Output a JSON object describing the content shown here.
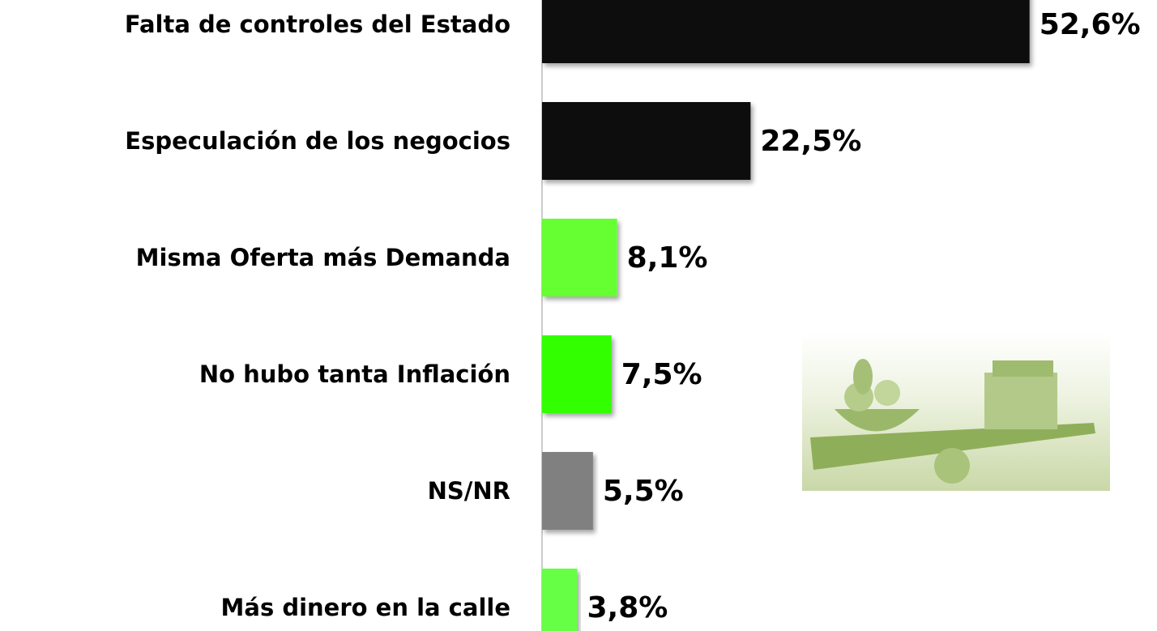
{
  "chart_data": {
    "type": "bar",
    "orientation": "horizontal",
    "categories": [
      "Falta de controles del Estado",
      "Especulación de los negocios",
      "Misma Oferta más Demanda",
      "No hubo tanta Inflación",
      "NS/NR",
      "Más dinero en la calle"
    ],
    "values": [
      52.6,
      22.5,
      8.1,
      7.5,
      5.5,
      3.8
    ],
    "value_labels": [
      "52,6%",
      "22,5%",
      "8,1%",
      "7,5%",
      "5,5%",
      "3,8%"
    ],
    "colors": [
      "#111111",
      "#111111",
      "#66ff33",
      "#33ff00",
      "#808080",
      "#66ff44"
    ],
    "xlim": [
      0,
      66
    ]
  }
}
